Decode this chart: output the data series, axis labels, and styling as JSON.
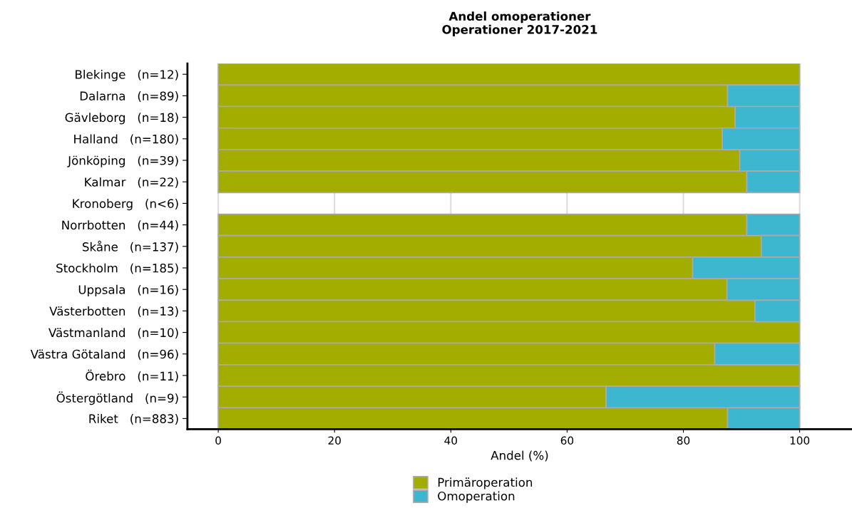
{
  "chart_data": {
    "type": "bar",
    "orientation": "horizontal",
    "stacked": true,
    "title": "Andel omoperationer\nOperationer 2017-2021",
    "xlabel": "Andel (%)",
    "categories": [
      "Blekinge   (n=12)",
      "Dalarna   (n=89)",
      "Gävleborg   (n=18)",
      "Halland   (n=180)",
      "Jönköping   (n=39)",
      "Kalmar   (n=22)",
      "Kronoberg   (n<6)",
      "Norrbotten   (n=44)",
      "Skåne   (n=137)",
      "Stockholm   (n=185)",
      "Uppsala   (n=16)",
      "Västerbotten   (n=13)",
      "Västmanland   (n=10)",
      "Västra Götaland   (n=96)",
      "Örebro   (n=11)",
      "Östergötland   (n=9)",
      "Riket   (n=883)"
    ],
    "series": [
      {
        "name": "Primäroperation",
        "color": "#a3ad00",
        "values": [
          100,
          87.6,
          88.9,
          86.7,
          89.7,
          90.9,
          null,
          90.9,
          93.4,
          81.6,
          87.5,
          92.3,
          100,
          85.4,
          100,
          66.7,
          87.6
        ]
      },
      {
        "name": "Omoperation",
        "color": "#3db7cf",
        "values": [
          0,
          12.4,
          11.1,
          13.3,
          10.3,
          9.1,
          null,
          9.1,
          6.6,
          18.4,
          12.5,
          7.7,
          0,
          14.6,
          0,
          33.3,
          12.4
        ]
      }
    ],
    "xlim": [
      -5.3,
      109
    ],
    "xticks": [
      0,
      20,
      40,
      60,
      80,
      100
    ],
    "grid": "x",
    "legend": "bottom"
  }
}
